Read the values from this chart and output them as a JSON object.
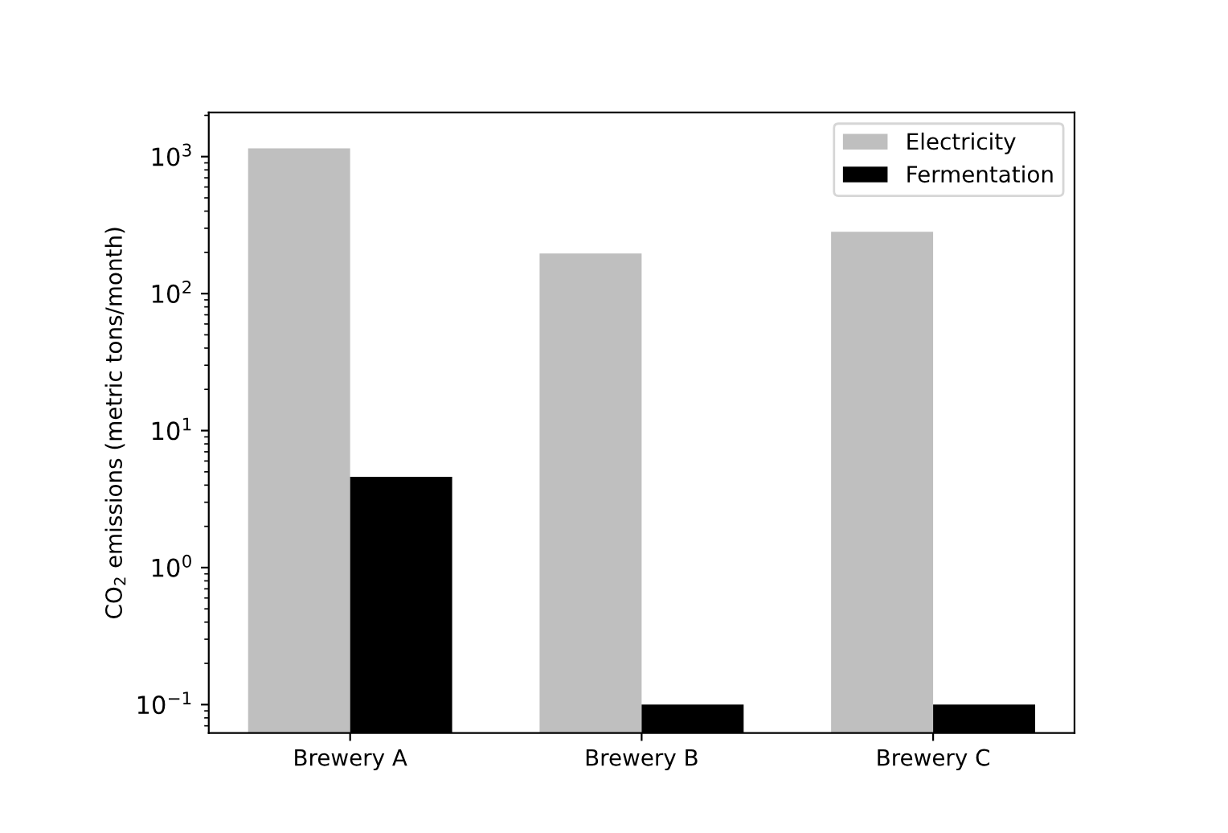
{
  "chart_data": {
    "type": "bar",
    "ylabel": "CO$_{2}$ emissions (metric tons/month)",
    "categories": [
      "Brewery A",
      "Brewery B",
      "Brewery C"
    ],
    "series": [
      {
        "name": "Electricity",
        "color": "#bfbfbf",
        "values": [
          1150,
          196,
          283
        ]
      },
      {
        "name": "Fermentation",
        "color": "#000000",
        "values": [
          4.6,
          0.1,
          0.1
        ]
      }
    ],
    "log": "y",
    "ylim": [
      0.062,
      2100
    ],
    "yticks": [
      {
        "value": 0.1,
        "label": "10$^{−1}$"
      },
      {
        "value": 1,
        "label": "10$^{0}$"
      },
      {
        "value": 10,
        "label": "10$^{1}$"
      },
      {
        "value": 100,
        "label": "10$^{2}$"
      },
      {
        "value": 1000,
        "label": "10$^{3}$"
      }
    ],
    "legend": "top right",
    "grid": false
  }
}
